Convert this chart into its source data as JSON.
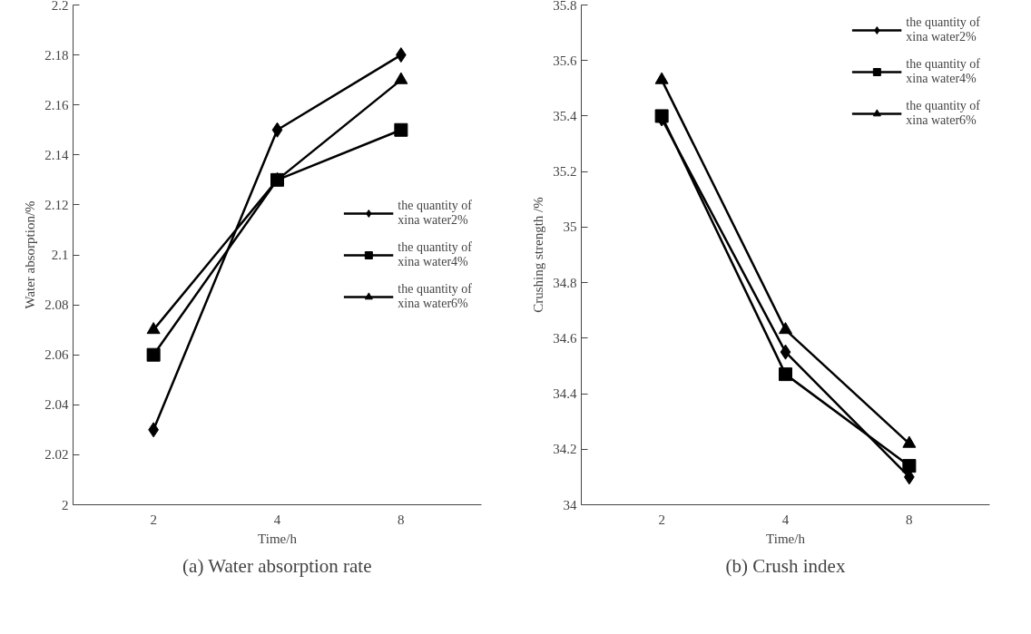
{
  "chart_data": [
    {
      "type": "line",
      "title": "(a) Water absorption rate",
      "xlabel": "Time/h",
      "ylabel": "Water absorption/%",
      "categories": [
        "2",
        "4",
        "8"
      ],
      "series": [
        {
          "name": "the quantity of xina water2%",
          "color": "#000000",
          "marker": "diamond",
          "values": [
            2.03,
            2.15,
            2.18
          ]
        },
        {
          "name": "the quantity of xina water4%",
          "color": "#000000",
          "marker": "square",
          "values": [
            2.06,
            2.13,
            2.15
          ]
        },
        {
          "name": "the quantity of xina water6%",
          "color": "#000000",
          "marker": "triangle",
          "values": [
            2.07,
            2.13,
            2.17
          ]
        }
      ],
      "ylim": [
        2,
        2.2
      ],
      "yticks": [
        2,
        2.02,
        2.04,
        2.06,
        2.08,
        2.1,
        2.12,
        2.14,
        2.16,
        2.18,
        2.2
      ],
      "legend": "right",
      "line_style": "solid"
    },
    {
      "type": "line",
      "title": "(b) Crush index",
      "xlabel": "Time/h",
      "ylabel": "Crushing strength /%",
      "categories": [
        "2",
        "4",
        "8"
      ],
      "series": [
        {
          "name": "the quantity of xina water2%",
          "color": "#000000",
          "marker": "diamond",
          "values": [
            35.39,
            34.55,
            34.1
          ]
        },
        {
          "name": "the quantity of xina water4%",
          "color": "#000000",
          "marker": "square",
          "values": [
            35.4,
            34.47,
            34.14
          ]
        },
        {
          "name": "the quantity of xina water6%",
          "color": "#000000",
          "marker": "triangle",
          "values": [
            35.53,
            34.63,
            34.22
          ]
        }
      ],
      "ylim": [
        34,
        35.8
      ],
      "yticks": [
        34,
        34.2,
        34.4,
        34.6,
        34.8,
        35,
        35.2,
        35.4,
        35.6,
        35.8
      ],
      "legend": "top_right",
      "line_style": "solid"
    }
  ]
}
